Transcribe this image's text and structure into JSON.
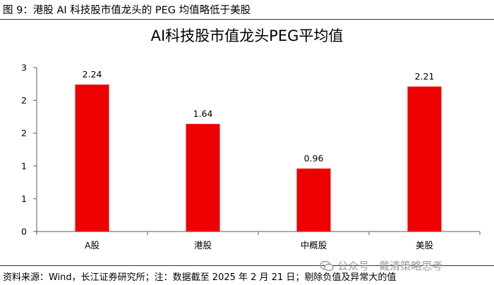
{
  "header": {
    "figure_title": "图 9：港股 AI 科技股市值龙头的 PEG 均值略低于美股"
  },
  "footer": {
    "source": "资料来源：Wind，长江证券研究所；注：数据截至 2025 年 2 月 21 日；剔除负值及异常大的值",
    "watermark": "公众号 · 戴清策略思考",
    "watermark_icon": "wechat-icon"
  },
  "colors": {
    "bar": "#ee0000",
    "rule": "#b00000",
    "axis": "#595959"
  },
  "chart_data": {
    "type": "bar",
    "title": "AI科技股市值龙头PEG平均值",
    "categories": [
      "A股",
      "港股",
      "中概股",
      "美股"
    ],
    "values": [
      2.24,
      1.64,
      0.96,
      2.21
    ],
    "data_labels": [
      "2.24",
      "1.64",
      "0.96",
      "2.21"
    ],
    "yticks": [
      0,
      0.5,
      1,
      1.5,
      2,
      2.5
    ],
    "ytick_labels": [
      "0",
      "1",
      "1",
      "2",
      "2",
      "3"
    ],
    "ylim": [
      0,
      2.5
    ],
    "xlabel": "",
    "ylabel": "",
    "grid": false,
    "legend": "none"
  }
}
